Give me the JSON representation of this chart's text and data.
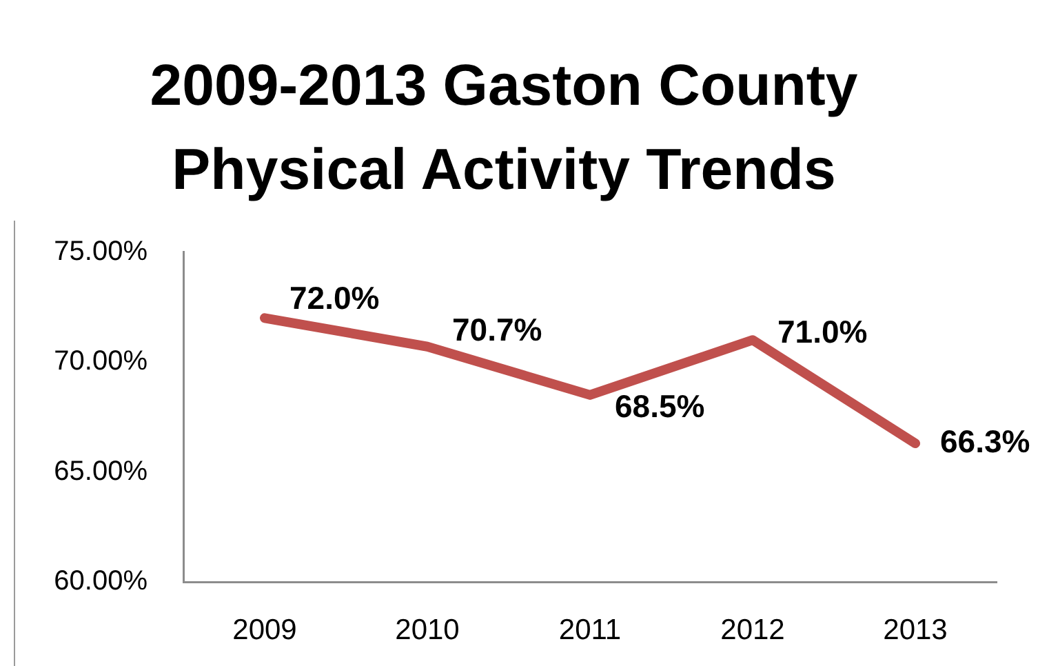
{
  "chart_data": {
    "type": "line",
    "title": "2009-2013 Gaston County Physical Activity Trends",
    "categories": [
      "2009",
      "2010",
      "2011",
      "2012",
      "2013"
    ],
    "series": [
      {
        "color": "#c0504d",
        "values": [
          72.0,
          70.7,
          68.5,
          71.0,
          66.3
        ],
        "value_labels": [
          "72.0%",
          "70.7%",
          "68.5%",
          "71.0%",
          "66.3%"
        ]
      }
    ],
    "ylim": [
      60,
      75
    ],
    "yticks": [
      {
        "value": 60,
        "label": "60.00%"
      },
      {
        "value": 65,
        "label": "65.00%"
      },
      {
        "value": 70,
        "label": "70.00%"
      },
      {
        "value": 75,
        "label": "75.00%"
      }
    ],
    "grid": false,
    "legend": false,
    "marker": "none",
    "line_style": "solid"
  }
}
